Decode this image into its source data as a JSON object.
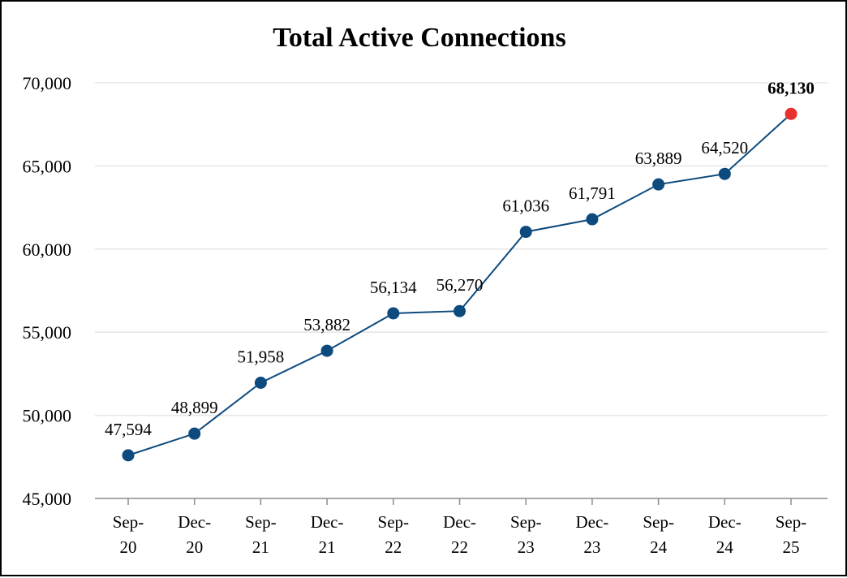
{
  "chart_data": {
    "type": "line",
    "title": "Total Active Connections",
    "xlabel": "",
    "ylabel": "",
    "categories": [
      [
        "Sep-",
        "20"
      ],
      [
        "Dec-",
        "20"
      ],
      [
        "Sep-",
        "21"
      ],
      [
        "Dec-",
        "21"
      ],
      [
        "Sep-",
        "22"
      ],
      [
        "Dec-",
        "22"
      ],
      [
        "Sep-",
        "23"
      ],
      [
        "Dec-",
        "23"
      ],
      [
        "Sep-",
        "24"
      ],
      [
        "Dec-",
        "24"
      ],
      [
        "Sep-",
        "25"
      ]
    ],
    "values": [
      47594,
      48899,
      51958,
      53882,
      56134,
      56270,
      61036,
      61791,
      63889,
      64520,
      68130
    ],
    "data_labels": [
      "47,594",
      "48,899",
      "51,958",
      "53,882",
      "56,134",
      "56,270",
      "61,036",
      "61,791",
      "63,889",
      "64,520",
      "68,130"
    ],
    "ylim": [
      45000,
      70000
    ],
    "yticks": [
      45000,
      50000,
      55000,
      60000,
      65000,
      70000
    ],
    "ytick_labels": [
      "45,000",
      "50,000",
      "55,000",
      "60,000",
      "65,000",
      "70,000"
    ],
    "grid": true,
    "legend": "none",
    "highlight_index": 10,
    "colors": {
      "line": "#0d4a7e",
      "marker": "#0d4a7e",
      "highlight": "#e8312f"
    }
  }
}
